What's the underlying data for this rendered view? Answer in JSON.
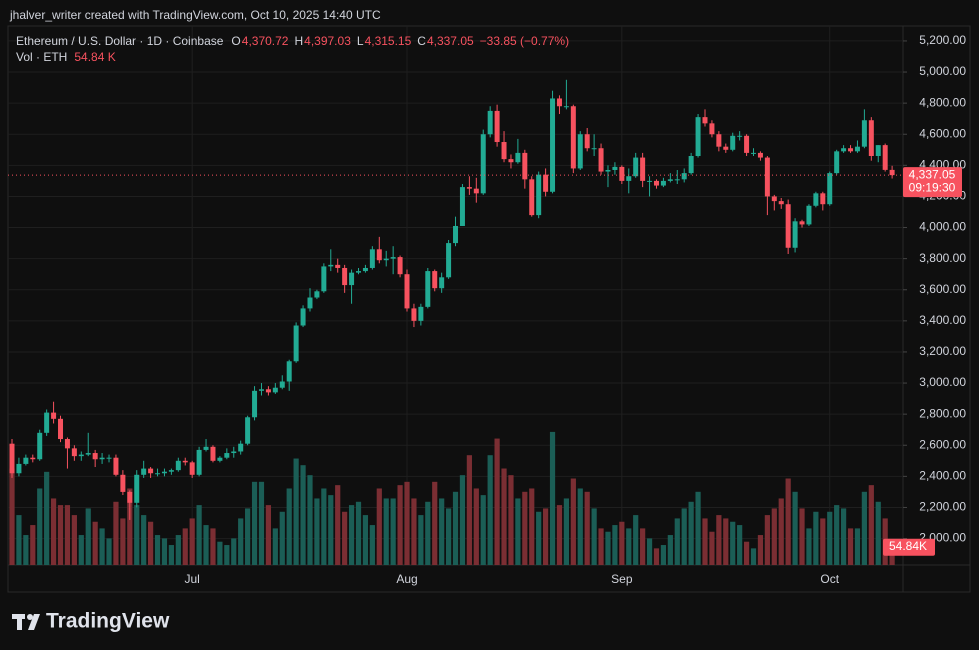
{
  "header": {
    "text": "jhalver_writer created with TradingView.com, Oct 10, 2025 14:40 UTC"
  },
  "logo": {
    "text": "TradingView"
  },
  "chart_data": {
    "type": "candlestick",
    "title": "Ethereum / U.S. Dollar · 1D · Coinbase",
    "ohlc_legend": [
      {
        "key": "O",
        "text": "4,370.72"
      },
      {
        "key": "H",
        "text": "4,397.03"
      },
      {
        "key": "L",
        "text": "4,315.15"
      },
      {
        "key": "C",
        "text": "4,337.05"
      }
    ],
    "change_text": "−33.85 (−0.77%)",
    "volume_legend": {
      "key": "Vol · ETH",
      "text": "54.84 K"
    },
    "last_price_label": "4,337.05",
    "countdown": "09:19:30",
    "volume_label": "54.84K",
    "up_color": "#22ab94",
    "down_color": "#f7525f",
    "volume_up_color": "#1b5e56",
    "volume_down_color": "#7b2e33",
    "grid": true,
    "categories": [
      null,
      null,
      null,
      null,
      null,
      null,
      null,
      null,
      null,
      null,
      null,
      null,
      null,
      null,
      null,
      null,
      null,
      null,
      null,
      null,
      null,
      null,
      null,
      null,
      null,
      null,
      "Jul",
      null,
      null,
      null,
      null,
      null,
      null,
      null,
      null,
      null,
      null,
      null,
      null,
      null,
      null,
      null,
      null,
      null,
      null,
      null,
      null,
      null,
      null,
      null,
      null,
      null,
      null,
      null,
      null,
      null,
      null,
      "Aug",
      null,
      null,
      null,
      null,
      null,
      null,
      null,
      null,
      null,
      null,
      null,
      null,
      null,
      null,
      null,
      null,
      null,
      null,
      null,
      null,
      null,
      null,
      null,
      null,
      null,
      null,
      null,
      null,
      null,
      null,
      "Sep",
      null,
      null,
      null,
      null,
      null,
      null,
      null,
      null,
      null,
      null,
      null,
      null,
      null,
      null,
      null,
      null,
      null,
      null,
      null,
      null,
      null,
      null,
      null,
      null,
      null,
      null,
      null,
      null,
      null,
      "Oct",
      null,
      null,
      null,
      null,
      null,
      null,
      null,
      null,
      null
    ],
    "open": [
      2610,
      2420,
      2480,
      2520,
      2510,
      2680,
      2810,
      2770,
      2640,
      2580,
      2530,
      2540,
      2550,
      2510,
      2520,
      2520,
      2410,
      2300,
      2230,
      2410,
      2450,
      2420,
      2420,
      2430,
      2440,
      2500,
      2490,
      2410,
      2570,
      2590,
      2500,
      2520,
      2550,
      2560,
      2610,
      2780,
      2950,
      2960,
      2940,
      2970,
      3010,
      3140,
      3370,
      3480,
      3550,
      3590,
      3750,
      3760,
      3740,
      3630,
      3710,
      3720,
      3740,
      3860,
      3790,
      3800,
      3810,
      3700,
      3480,
      3400,
      3490,
      3720,
      3610,
      3680,
      3900,
      4010,
      4260,
      4250,
      4220,
      4600,
      4750,
      4550,
      4440,
      4420,
      4480,
      4310,
      4080,
      4340,
      4230,
      4830,
      4780,
      4780,
      4380,
      4600,
      4510,
      4510,
      4360,
      4370,
      4390,
      4300,
      4330,
      4450,
      4300,
      4300,
      4270,
      4300,
      4310,
      4310,
      4350,
      4460,
      4710,
      4670,
      4600,
      4520,
      4500,
      4590,
      4590,
      4480,
      4480,
      4450,
      4200,
      4170,
      4150,
      3870,
      4040,
      4020,
      4140,
      4220,
      4150,
      4350,
      4490,
      4510,
      4490,
      4520,
      4690,
      4460,
      4530,
      4370.72
    ],
    "high": [
      2640,
      2520,
      2540,
      2540,
      2700,
      2830,
      2880,
      2790,
      2650,
      2600,
      2560,
      2680,
      2570,
      2550,
      2540,
      2540,
      2440,
      2310,
      2440,
      2500,
      2460,
      2450,
      2450,
      2450,
      2520,
      2520,
      2500,
      2590,
      2640,
      2600,
      2530,
      2580,
      2590,
      2630,
      2790,
      2980,
      3000,
      2980,
      3000,
      3050,
      3150,
      3390,
      3500,
      3610,
      3600,
      3770,
      3860,
      3800,
      3760,
      3730,
      3740,
      3760,
      3880,
      3940,
      3850,
      3880,
      3820,
      3730,
      3510,
      3510,
      3740,
      3730,
      3710,
      3920,
      4070,
      4280,
      4330,
      4320,
      4630,
      4780,
      4790,
      4620,
      4470,
      4570,
      4500,
      4330,
      4360,
      4380,
      4880,
      4850,
      4950,
      4790,
      4620,
      4640,
      4600,
      4540,
      4400,
      4420,
      4400,
      4380,
      4480,
      4480,
      4330,
      4310,
      4320,
      4350,
      4370,
      4380,
      4480,
      4730,
      4760,
      4690,
      4620,
      4540,
      4610,
      4620,
      4600,
      4510,
      4490,
      4460,
      4210,
      4190,
      4180,
      4060,
      4050,
      4150,
      4230,
      4230,
      4360,
      4500,
      4530,
      4530,
      4560,
      4760,
      4710,
      4530,
      4540,
      4397.03
    ],
    "low": [
      2390,
      2400,
      2470,
      2490,
      2500,
      2660,
      2740,
      2620,
      2450,
      2500,
      2500,
      2530,
      2460,
      2480,
      2490,
      2400,
      2280,
      2120,
      2200,
      2390,
      2390,
      2400,
      2400,
      2410,
      2430,
      2470,
      2390,
      2400,
      2560,
      2490,
      2490,
      2510,
      2520,
      2540,
      2600,
      2760,
      2920,
      2920,
      2930,
      2960,
      2950,
      3130,
      3360,
      3460,
      3540,
      3580,
      3720,
      3710,
      3580,
      3510,
      3700,
      3710,
      3730,
      3770,
      3750,
      3700,
      3680,
      3460,
      3360,
      3370,
      3480,
      3590,
      3580,
      3670,
      3880,
      4010,
      4210,
      4160,
      4210,
      4580,
      4520,
      4420,
      4380,
      4410,
      4250,
      4070,
      4060,
      4200,
      4220,
      4730,
      4760,
      4350,
      4370,
      4490,
      4460,
      4340,
      4260,
      4340,
      4280,
      4220,
      4320,
      4260,
      4200,
      4250,
      4260,
      4290,
      4280,
      4290,
      4340,
      4450,
      4650,
      4580,
      4490,
      4480,
      4490,
      4560,
      4460,
      4460,
      4430,
      4080,
      4110,
      4120,
      3830,
      3840,
      4000,
      4010,
      4130,
      4110,
      4140,
      4340,
      4480,
      4480,
      4480,
      4510,
      4430,
      4420,
      4360,
      4315.15
    ],
    "close": [
      2420,
      2480,
      2520,
      2510,
      2680,
      2810,
      2770,
      2640,
      2580,
      2530,
      2540,
      2550,
      2510,
      2520,
      2520,
      2410,
      2300,
      2230,
      2410,
      2450,
      2420,
      2420,
      2430,
      2440,
      2500,
      2490,
      2410,
      2570,
      2590,
      2500,
      2520,
      2550,
      2560,
      2610,
      2780,
      2950,
      2960,
      2940,
      2970,
      3010,
      3140,
      3370,
      3480,
      3550,
      3590,
      3750,
      3760,
      3740,
      3630,
      3710,
      3720,
      3740,
      3860,
      3790,
      3800,
      3810,
      3700,
      3480,
      3400,
      3490,
      3720,
      3610,
      3680,
      3900,
      4010,
      4260,
      4250,
      4220,
      4600,
      4750,
      4550,
      4440,
      4420,
      4480,
      4310,
      4080,
      4340,
      4230,
      4830,
      4780,
      4780,
      4380,
      4600,
      4510,
      4510,
      4360,
      4370,
      4390,
      4300,
      4330,
      4450,
      4300,
      4300,
      4270,
      4300,
      4310,
      4310,
      4350,
      4460,
      4710,
      4670,
      4600,
      4520,
      4500,
      4590,
      4590,
      4480,
      4480,
      4450,
      4200,
      4170,
      4150,
      3870,
      4040,
      4020,
      4140,
      4220,
      4150,
      4350,
      4490,
      4510,
      4490,
      4520,
      4690,
      4460,
      4530,
      4370.72,
      4337.05
    ],
    "volume": [
      290,
      150,
      90,
      120,
      230,
      280,
      200,
      180,
      180,
      150,
      90,
      170,
      130,
      110,
      80,
      190,
      140,
      230,
      180,
      150,
      130,
      90,
      80,
      60,
      90,
      110,
      140,
      180,
      120,
      110,
      70,
      60,
      80,
      140,
      170,
      250,
      250,
      180,
      110,
      160,
      230,
      320,
      300,
      270,
      200,
      230,
      210,
      240,
      160,
      180,
      190,
      150,
      120,
      230,
      200,
      200,
      240,
      250,
      200,
      150,
      190,
      250,
      200,
      170,
      220,
      270,
      330,
      230,
      210,
      330,
      380,
      290,
      270,
      200,
      220,
      230,
      160,
      170,
      400,
      180,
      200,
      260,
      230,
      220,
      170,
      110,
      100,
      120,
      130,
      110,
      150,
      110,
      80,
      50,
      60,
      90,
      140,
      170,
      190,
      220,
      140,
      100,
      150,
      140,
      130,
      120,
      70,
      50,
      90,
      150,
      170,
      200,
      260,
      220,
      170,
      110,
      160,
      140,
      160,
      180,
      170,
      110,
      110,
      220,
      240,
      190,
      140,
      54.84
    ],
    "ylim": [
      1830,
      5296
    ],
    "volume_ylim": [
      0,
      1620
    ],
    "yticks": [
      {
        "value": 2000,
        "label": "2,000.00"
      },
      {
        "value": 2200,
        "label": "2,200.00"
      },
      {
        "value": 2400,
        "label": "2,400.00"
      },
      {
        "value": 2600,
        "label": "2,600.00"
      },
      {
        "value": 2800,
        "label": "2,800.00"
      },
      {
        "value": 3000,
        "label": "3,000.00"
      },
      {
        "value": 3200,
        "label": "3,200.00"
      },
      {
        "value": 3400,
        "label": "3,400.00"
      },
      {
        "value": 3600,
        "label": "3,600.00"
      },
      {
        "value": 3800,
        "label": "3,800.00"
      },
      {
        "value": 4000,
        "label": "4,000.00"
      },
      {
        "value": 4200,
        "label": "4,200.00"
      },
      {
        "value": 4400,
        "label": "4,400.00"
      },
      {
        "value": 4600,
        "label": "4,600.00"
      },
      {
        "value": 4800,
        "label": "4,800.00"
      },
      {
        "value": 5000,
        "label": "5,000.00"
      },
      {
        "value": 5200,
        "label": "5,200.00"
      }
    ]
  }
}
